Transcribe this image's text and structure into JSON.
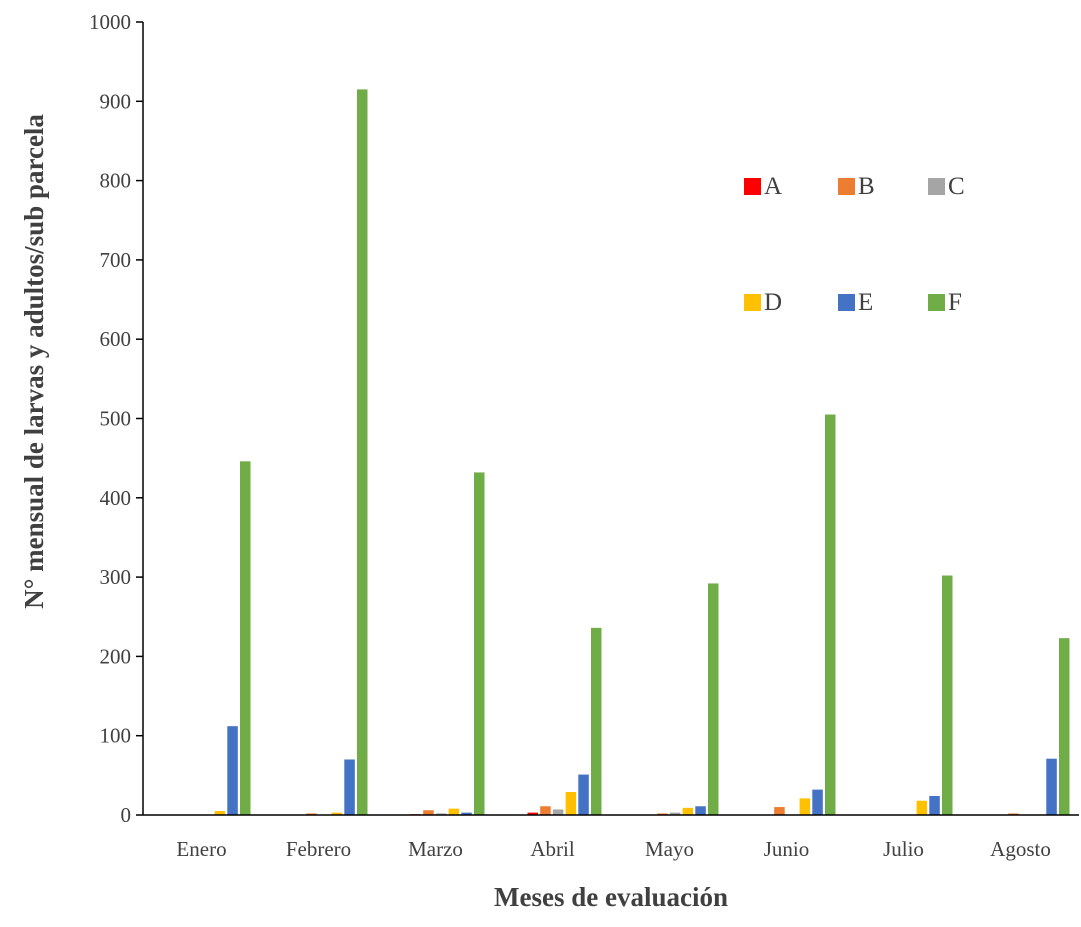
{
  "chart_data": {
    "type": "bar",
    "title": "",
    "xlabel": "Meses de evaluación",
    "ylabel": "N° mensual de larvas y adultos/sub parcela",
    "ylim": [
      0,
      1000
    ],
    "yticks": [
      0,
      100,
      200,
      300,
      400,
      500,
      600,
      700,
      800,
      900,
      1000
    ],
    "categories": [
      "Enero",
      "Febrero",
      "Marzo",
      "Abril",
      "Mayo",
      "Junio",
      "Julio",
      "Agosto"
    ],
    "grid": false,
    "legend_position": "upper-right",
    "series": [
      {
        "name": "A",
        "color": "#ff0000",
        "values": [
          0,
          0,
          1,
          3,
          0,
          0,
          0,
          0
        ]
      },
      {
        "name": "B",
        "color": "#ed7d31",
        "values": [
          0,
          2,
          6,
          11,
          2,
          10,
          0,
          2
        ]
      },
      {
        "name": "C",
        "color": "#a5a5a5",
        "values": [
          0,
          0,
          2,
          7,
          3,
          0,
          0,
          0
        ]
      },
      {
        "name": "D",
        "color": "#ffc000",
        "values": [
          5,
          3,
          8,
          29,
          9,
          21,
          18,
          0
        ]
      },
      {
        "name": "E",
        "color": "#4472c4",
        "values": [
          112,
          70,
          3,
          51,
          11,
          32,
          24,
          71
        ]
      },
      {
        "name": "F",
        "color": "#70ad47",
        "values": [
          446,
          915,
          432,
          236,
          292,
          505,
          302,
          223
        ]
      }
    ]
  }
}
